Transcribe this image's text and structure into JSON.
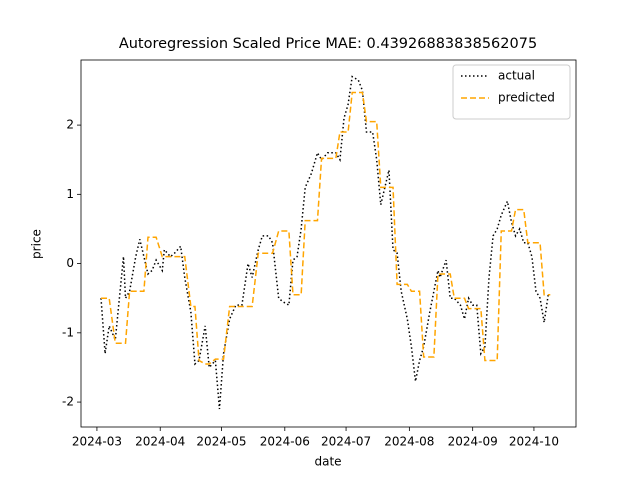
{
  "chart_data": {
    "type": "line",
    "title": "Autoregression Scaled Price MAE: 0.43926883838562075",
    "x_label": "date",
    "y_label": "price",
    "x": [
      19785,
      19787,
      19789,
      19792,
      19794,
      19796,
      19797,
      19799,
      19802,
      19804,
      19806,
      19808,
      19810,
      19812,
      19815,
      19816,
      19819,
      19821,
      19824,
      19826,
      19829,
      19831,
      19833,
      19836,
      19838,
      19841,
      19843,
      19845,
      19848,
      19851,
      19854,
      19857,
      19859,
      19862,
      19864,
      19867,
      19869,
      19872,
      19874,
      19877,
      19879,
      19881,
      19883,
      19885,
      19888,
      19891,
      19893,
      19896,
      19900,
      19902,
      19904,
      19906,
      19908,
      19911,
      19913,
      19915,
      19918,
      19920,
      19922,
      19924,
      19926,
      19928,
      19930,
      19932,
      19935,
      19937,
      19939,
      19941,
      19943,
      19946,
      19948,
      19950,
      19951,
      19954,
      19956,
      19958,
      19961,
      19963,
      19965,
      19967,
      19969,
      19971,
      19973,
      19975,
      19977,
      19979,
      19981,
      19984,
      19986,
      19988,
      19990,
      19992,
      19994,
      19996,
      19998,
      20000,
      20002,
      20004,
      20005
    ],
    "series": [
      {
        "name": "actual",
        "color": "#000000",
        "linestyle": "dotted",
        "values": [
          -0.5,
          -1.3,
          -0.9,
          -1.1,
          -0.5,
          0.1,
          -0.5,
          -0.4,
          0.1,
          0.35,
          0.1,
          -0.15,
          -0.1,
          0.05,
          -0.1,
          0.2,
          0.1,
          0.15,
          0.25,
          -0.2,
          -0.7,
          -1.45,
          -1.4,
          -0.9,
          -1.5,
          -1.4,
          -2.1,
          -1.3,
          -0.8,
          -0.6,
          -0.6,
          0.0,
          -0.2,
          0.2,
          0.4,
          0.4,
          0.3,
          -0.5,
          -0.55,
          -0.6,
          0.05,
          0.1,
          0.5,
          1.1,
          1.3,
          1.6,
          1.5,
          1.6,
          1.6,
          1.5,
          2.1,
          2.3,
          2.7,
          2.65,
          2.5,
          1.9,
          1.9,
          1.5,
          0.85,
          1.1,
          1.35,
          0.2,
          0.15,
          -0.4,
          -0.8,
          -1.2,
          -1.7,
          -1.4,
          -1.2,
          -0.7,
          -0.4,
          -0.1,
          -0.2,
          0.05,
          -0.5,
          -0.5,
          -0.6,
          -0.8,
          -0.5,
          -0.6,
          -0.6,
          -1.3,
          -1.2,
          -0.2,
          0.4,
          0.5,
          0.7,
          0.9,
          0.6,
          0.4,
          0.5,
          0.3,
          0.3,
          0.1,
          -0.4,
          -0.5,
          -0.85,
          -0.45,
          -0.45
        ]
      },
      {
        "name": "predicted",
        "color": "#ffa500",
        "linestyle": "dashed",
        "values": [
          -0.5,
          -0.5,
          -0.5,
          -1.15,
          -1.15,
          -1.15,
          -1.15,
          -0.4,
          -0.4,
          -0.4,
          -0.4,
          0.38,
          0.38,
          0.38,
          0.1,
          0.1,
          0.1,
          0.1,
          0.1,
          0.1,
          -0.62,
          -0.62,
          -1.4,
          -1.45,
          -1.45,
          -1.38,
          -1.38,
          -1.38,
          -0.62,
          -0.62,
          -0.62,
          -0.62,
          -0.62,
          0.15,
          0.15,
          0.15,
          0.15,
          0.47,
          0.47,
          0.47,
          -0.45,
          -0.45,
          -0.45,
          0.62,
          0.62,
          0.62,
          1.52,
          1.52,
          1.52,
          1.9,
          1.9,
          1.9,
          2.47,
          2.47,
          2.47,
          2.05,
          2.05,
          2.05,
          1.1,
          1.1,
          1.1,
          1.1,
          -0.3,
          -0.3,
          -0.3,
          -0.4,
          -0.4,
          -0.4,
          -1.35,
          -1.35,
          -1.35,
          -0.15,
          -0.15,
          -0.15,
          -0.15,
          -0.5,
          -0.5,
          -0.5,
          -0.65,
          -0.65,
          -0.65,
          -0.65,
          -1.4,
          -1.4,
          -1.4,
          -1.4,
          0.47,
          0.47,
          0.47,
          0.78,
          0.78,
          0.78,
          0.3,
          0.3,
          0.3,
          0.3,
          -0.45,
          -0.45,
          -0.45
        ]
      }
    ],
    "xlim": [
      19775.2,
      20017.6
    ],
    "xticks": [
      {
        "value": 19783,
        "label": "2024-03"
      },
      {
        "value": 19814,
        "label": "2024-04"
      },
      {
        "value": 19844,
        "label": "2024-05"
      },
      {
        "value": 19875,
        "label": "2024-06"
      },
      {
        "value": 19905,
        "label": "2024-07"
      },
      {
        "value": 19936,
        "label": "2024-08"
      },
      {
        "value": 19967,
        "label": "2024-09"
      },
      {
        "value": 19997,
        "label": "2024-10"
      }
    ],
    "ylim": [
      -2.36,
      2.94
    ],
    "yticks": [
      -2,
      -1,
      0,
      1,
      2
    ],
    "grid": false,
    "legend": "upper right"
  }
}
